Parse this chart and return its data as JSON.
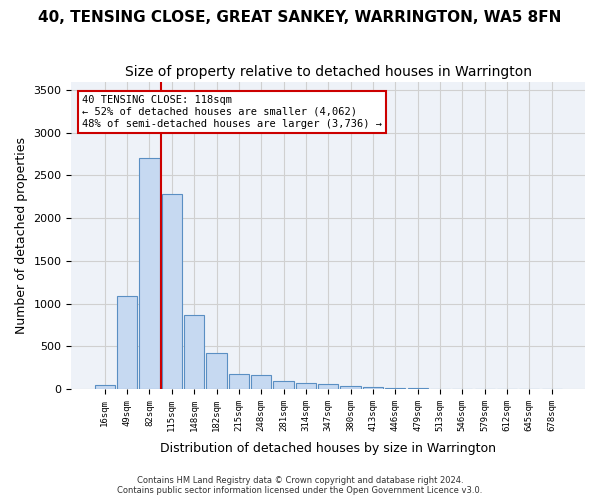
{
  "title": "40, TENSING CLOSE, GREAT SANKEY, WARRINGTON, WA5 8FN",
  "subtitle": "Size of property relative to detached houses in Warrington",
  "xlabel": "Distribution of detached houses by size in Warrington",
  "ylabel": "Number of detached properties",
  "bar_values": [
    50,
    1090,
    2710,
    2280,
    870,
    415,
    170,
    165,
    95,
    65,
    55,
    35,
    25,
    5,
    5,
    2,
    2,
    2,
    2,
    2,
    1
  ],
  "bar_labels": [
    "16sqm",
    "49sqm",
    "82sqm",
    "115sqm",
    "148sqm",
    "182sqm",
    "215sqm",
    "248sqm",
    "281sqm",
    "314sqm",
    "347sqm",
    "380sqm",
    "413sqm",
    "446sqm",
    "479sqm",
    "513sqm",
    "546sqm",
    "579sqm",
    "612sqm",
    "645sqm",
    "678sqm"
  ],
  "bar_color": "#c6d9f1",
  "bar_edge_color": "#5a8fc3",
  "grid_color": "#d0d0d0",
  "background_color": "#eef2f8",
  "vline_x_index": 3,
  "vline_color": "#cc0000",
  "annotation_text": "40 TENSING CLOSE: 118sqm\n← 52% of detached houses are smaller (4,062)\n48% of semi-detached houses are larger (3,736) →",
  "annotation_box_color": "#ffffff",
  "annotation_box_edge": "#cc0000",
  "ylim": [
    0,
    3600
  ],
  "yticks": [
    0,
    500,
    1000,
    1500,
    2000,
    2500,
    3000,
    3500
  ],
  "footer_text": "Contains HM Land Registry data © Crown copyright and database right 2024.\nContains public sector information licensed under the Open Government Licence v3.0.",
  "title_fontsize": 11,
  "subtitle_fontsize": 10,
  "xlabel_fontsize": 9,
  "ylabel_fontsize": 9
}
